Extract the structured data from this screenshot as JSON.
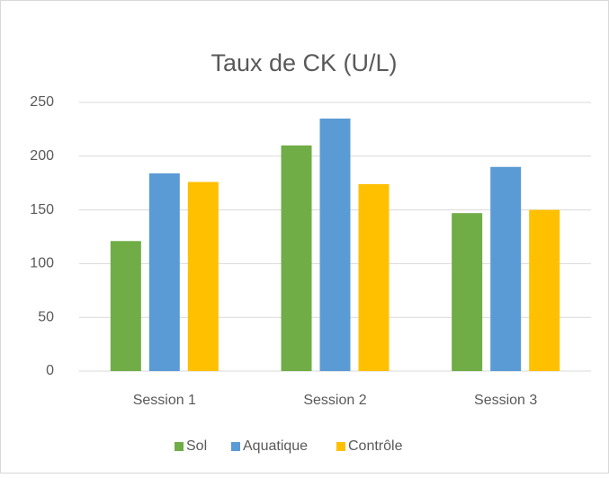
{
  "chart_data": {
    "type": "bar",
    "title": "Taux de CK (U/L)",
    "categories": [
      "Session 1",
      "Session 2",
      "Session 3"
    ],
    "series": [
      {
        "name": "Sol",
        "color": "#70ad47",
        "values": [
          121,
          210,
          147
        ]
      },
      {
        "name": "Aquatique",
        "color": "#5b9bd5",
        "values": [
          184,
          235,
          190
        ]
      },
      {
        "name": "Contrôle",
        "color": "#ffc000",
        "values": [
          176,
          174,
          150
        ]
      }
    ],
    "ylim": [
      0,
      250
    ],
    "yticks": [
      0,
      50,
      100,
      150,
      200,
      250
    ],
    "grid": true,
    "legend": "bottom"
  }
}
